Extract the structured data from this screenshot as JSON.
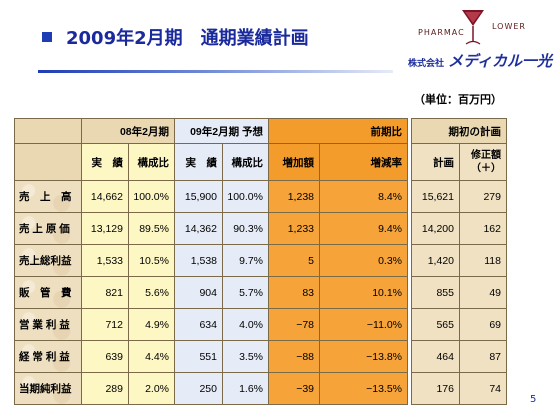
{
  "title": "2009年2月期　通期業績計画",
  "logo": {
    "word_left": "PHARMAC",
    "word_right": "LOWER",
    "company_prefix": "株式会社",
    "company_brand": "メディカル一光"
  },
  "unit_label": "（単位：百万円）",
  "page_number": "5",
  "colors": {
    "title_blue": "#1a2a9c",
    "parchment": "#eedfc0",
    "yellow": "#fdf7c4",
    "blue_forecast": "#e6ecf7",
    "orange_compare": "#f6a33a"
  },
  "table": {
    "group_headers": {
      "actual": "08年2月期",
      "forecast": "09年2月期 予想",
      "compare": "前期比",
      "plan": "期初の計画"
    },
    "sub_headers": {
      "actual_value": "実　績",
      "actual_ratio": "構成比",
      "forecast_value": "実　績",
      "forecast_ratio": "構成比",
      "increase": "増加額",
      "rate": "増減率",
      "plan": "計画",
      "revision_line1": "修正額",
      "revision_line2": "（＋）"
    },
    "rows": [
      {
        "label": "売　上　高",
        "actual": "14,662",
        "actual_ratio": "100.0%",
        "forecast": "15,900",
        "forecast_ratio": "100.0%",
        "increase": "1,238",
        "rate": "8.4%",
        "plan": "15,621",
        "revision": "279"
      },
      {
        "label": "売 上 原 価",
        "actual": "13,129",
        "actual_ratio": "89.5%",
        "forecast": "14,362",
        "forecast_ratio": "90.3%",
        "increase": "1,233",
        "rate": "9.4%",
        "plan": "14,200",
        "revision": "162"
      },
      {
        "label": "売上総利益",
        "actual": "1,533",
        "actual_ratio": "10.5%",
        "forecast": "1,538",
        "forecast_ratio": "9.7%",
        "increase": "5",
        "rate": "0.3%",
        "plan": "1,420",
        "revision": "118"
      },
      {
        "label": "販　管　費",
        "actual": "821",
        "actual_ratio": "5.6%",
        "forecast": "904",
        "forecast_ratio": "5.7%",
        "increase": "83",
        "rate": "10.1%",
        "plan": "855",
        "revision": "49"
      },
      {
        "label": "営 業 利 益",
        "actual": "712",
        "actual_ratio": "4.9%",
        "forecast": "634",
        "forecast_ratio": "4.0%",
        "increase": "−78",
        "rate": "−11.0%",
        "plan": "565",
        "revision": "69"
      },
      {
        "label": "経 常 利 益",
        "actual": "639",
        "actual_ratio": "4.4%",
        "forecast": "551",
        "forecast_ratio": "3.5%",
        "increase": "−88",
        "rate": "−13.8%",
        "plan": "464",
        "revision": "87"
      },
      {
        "label": "当期純利益",
        "actual": "289",
        "actual_ratio": "2.0%",
        "forecast": "250",
        "forecast_ratio": "1.6%",
        "increase": "−39",
        "rate": "−13.5%",
        "plan": "176",
        "revision": "74"
      }
    ]
  }
}
